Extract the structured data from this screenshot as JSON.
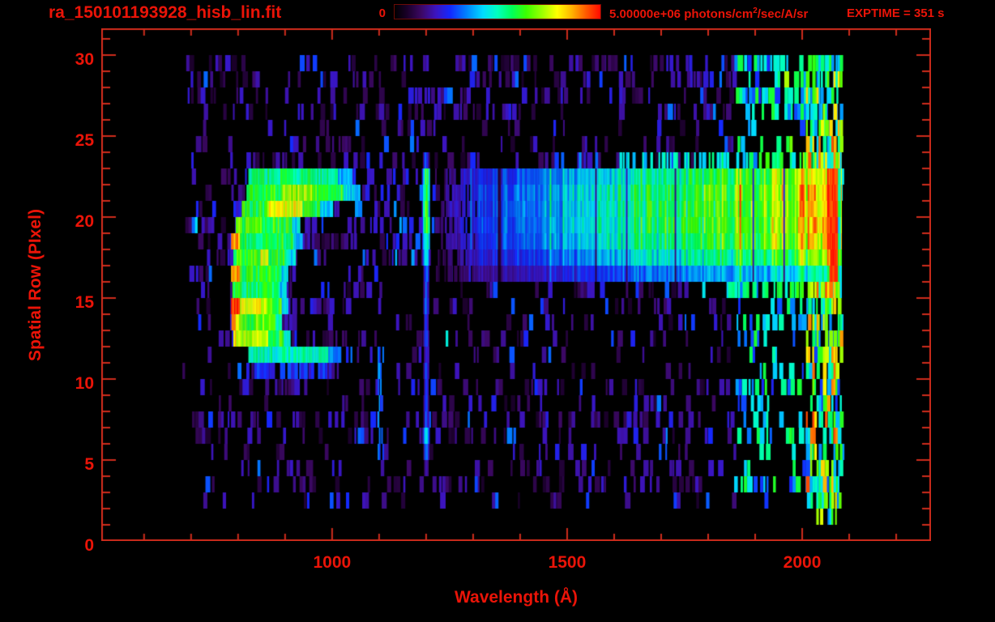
{
  "header": {
    "title": "ra_150101193928_hisb_lin.fit",
    "exptime": "EXPTIME = 351 s",
    "colorbar": {
      "min_label": "0",
      "max_label": "5.00000e+06",
      "unit_prefix": "photons/cm",
      "unit_sup": "2",
      "unit_suffix": "/sec/A/sr"
    }
  },
  "chart_data": {
    "type": "heatmap",
    "title": "ra_150101193928_hisb_lin.fit",
    "xlabel": "Wavelength (Å)",
    "ylabel": "Spatial Row (PIxel)",
    "xlim": [
      509,
      2274
    ],
    "ylim": [
      0,
      31.65
    ],
    "x_major_ticks": [
      1000,
      1500,
      2000
    ],
    "x_minor_tick_step": 100,
    "x_minor_tick_range": [
      600,
      2200
    ],
    "y_major_ticks": [
      0,
      5,
      10,
      15,
      20,
      25,
      30
    ],
    "y_minor_tick_step": 1,
    "grid": false,
    "legend": "colorbar-top",
    "colorbar": {
      "min": 0,
      "max": 5000000,
      "units": "photons/cm^2/sec/A/sr",
      "scale": "linear"
    },
    "exposure_time_s": 351,
    "palette": {
      "background": "#000000",
      "frame": "#cf2c1c",
      "text": "#ea1408",
      "colorbar_border": "#6b0b06"
    },
    "colormap_stops": [
      [
        0.0,
        0,
        0,
        0
      ],
      [
        0.06,
        25,
        0,
        40
      ],
      [
        0.13,
        60,
        8,
        100
      ],
      [
        0.2,
        60,
        20,
        190
      ],
      [
        0.27,
        20,
        40,
        255
      ],
      [
        0.35,
        0,
        130,
        255
      ],
      [
        0.43,
        0,
        220,
        255
      ],
      [
        0.5,
        0,
        255,
        190
      ],
      [
        0.57,
        0,
        255,
        90
      ],
      [
        0.64,
        60,
        255,
        0
      ],
      [
        0.72,
        160,
        255,
        0
      ],
      [
        0.79,
        255,
        255,
        0
      ],
      [
        0.86,
        255,
        180,
        0
      ],
      [
        0.93,
        255,
        90,
        0
      ],
      [
        1.0,
        255,
        10,
        0
      ]
    ],
    "data_extent": {
      "wavelength": [
        680,
        2082
      ],
      "rows": [
        2,
        30
      ]
    },
    "noise_seed": 150101,
    "features": {
      "background_noise": {
        "rows": [
          3,
          30
        ],
        "range": [
          680,
          2082
        ],
        "base_density": [
          0.2,
          0.53
        ],
        "intensity": [
          0.06,
          0.22
        ],
        "blue_chance": 0.17,
        "enhanced_above": 1855,
        "enhanced_intensity": [
          0.25,
          0.62
        ]
      },
      "bridge_noise": {
        "rows": [
          18,
          23
        ],
        "range": [
          1035,
          1185
        ],
        "density": 0.5,
        "imax": 0.28
      },
      "hook_emission": {
        "comment_units": "[row, core_l0, core_l1, core_I, green_l0, green_l1, peak_I, hot_l0, hot_l1, hot_I]",
        "rows": [
          [
            23,
            0,
            0,
            0,
            822,
            1040,
            0.55,
            0,
            0,
            0
          ],
          [
            22,
            0,
            0,
            0,
            818,
            1057,
            0.62,
            895,
            960,
            0.72
          ],
          [
            21,
            0,
            0,
            0,
            808,
            1000,
            0.6,
            862,
            935,
            0.78
          ],
          [
            20,
            795,
            805,
            0.72,
            806,
            930,
            0.62,
            0,
            0,
            0
          ],
          [
            19,
            785,
            800,
            0.88,
            801,
            935,
            0.6,
            0,
            0,
            0
          ],
          [
            18,
            0,
            0,
            0,
            790,
            920,
            0.62,
            845,
            862,
            0.8
          ],
          [
            17,
            785,
            800,
            0.92,
            801,
            905,
            0.6,
            0,
            0,
            0
          ],
          [
            16,
            788,
            800,
            0.6,
            801,
            900,
            0.58,
            0,
            0,
            0
          ],
          [
            15,
            785,
            800,
            0.95,
            801,
            905,
            0.62,
            802,
            862,
            0.78
          ],
          [
            14,
            786,
            800,
            0.85,
            801,
            890,
            0.66,
            0,
            0,
            0
          ],
          [
            13,
            790,
            805,
            0.8,
            806,
            910,
            0.62,
            807,
            862,
            0.75
          ],
          [
            12,
            0,
            0,
            0,
            822,
            1017,
            0.5,
            0,
            0,
            0
          ],
          [
            11,
            0,
            0,
            0,
            830,
            1000,
            0.22,
            0,
            0,
            0
          ]
        ]
      },
      "lyman_alpha_line": {
        "center": 1199,
        "comment_units": "[row, intensity, halfwidth_A]",
        "rows": [
          [
            24,
            0.3,
            6
          ],
          [
            23,
            0.62,
            8
          ],
          [
            22,
            0.65,
            8
          ],
          [
            21,
            0.6,
            8
          ],
          [
            20,
            0.63,
            8
          ],
          [
            19,
            0.58,
            8
          ],
          [
            18,
            0.48,
            7
          ],
          [
            17,
            0.34,
            5
          ],
          [
            16,
            0.3,
            5
          ],
          [
            15,
            0.32,
            5
          ],
          [
            14,
            0.28,
            4
          ],
          [
            13,
            0.3,
            5
          ],
          [
            12,
            0.26,
            4
          ],
          [
            11,
            0.3,
            5
          ],
          [
            10,
            0.26,
            4
          ],
          [
            9,
            0.28,
            5
          ],
          [
            8,
            0.3,
            5
          ],
          [
            7,
            0.42,
            6
          ],
          [
            6,
            0.34,
            5
          ],
          [
            5,
            0.22,
            4
          ]
        ]
      },
      "secondary_line": {
        "center": 1102,
        "rows": [
          6,
          12
        ],
        "intensity": 0.3,
        "halfwidth": 5,
        "density": 0.55
      },
      "continuum_band": {
        "start": 1225,
        "end": 2082,
        "ramp": [
          [
            1225,
            0.22
          ],
          [
            1350,
            0.3
          ],
          [
            1450,
            0.38
          ],
          [
            1550,
            0.46
          ],
          [
            1650,
            0.54
          ],
          [
            1750,
            0.58
          ],
          [
            1850,
            0.63
          ],
          [
            1920,
            0.68
          ],
          [
            1980,
            0.76
          ],
          [
            2030,
            0.85
          ],
          [
            2060,
            0.95
          ],
          [
            2082,
            0.97
          ]
        ],
        "solid_rows": {
          "23": 0.93,
          "22": 1.0,
          "21": 1.0,
          "20": 1.0,
          "19": 0.95,
          "18": 0.82,
          "17": 0.6
        },
        "dash_rows": {
          "24": [
            1500,
            0.5,
            0.85
          ],
          "16": [
            1720,
            0.4,
            0.8
          ]
        }
      },
      "right_edge_strip": {
        "solid_rows": [
          17,
          23
        ],
        "solid_range": [
          2058,
          2076
        ],
        "speckle_rows": [
          4,
          30
        ],
        "speckle_range": [
          2008,
          2082
        ],
        "speckle_density": 0.52,
        "bottom_clusters": [
          [
            3,
            2010,
            2082,
            0.8
          ],
          [
            2,
            2030,
            2082,
            0.5
          ]
        ]
      }
    }
  }
}
